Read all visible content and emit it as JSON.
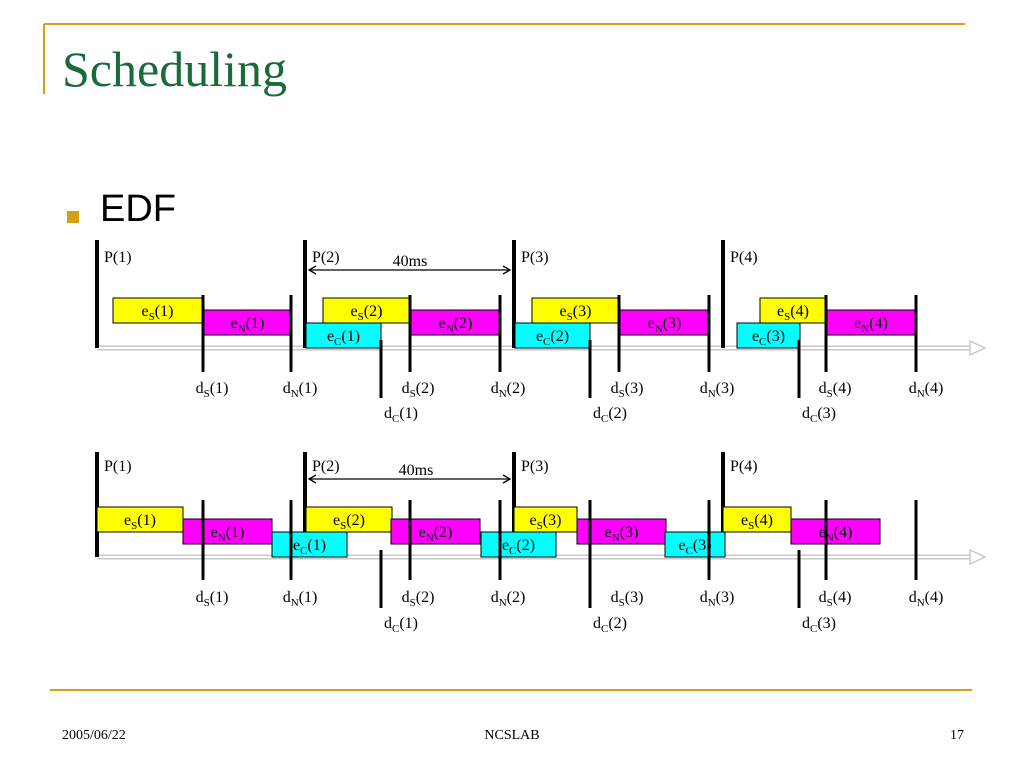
{
  "slide": {
    "title": "Scheduling",
    "bullet": "EDF",
    "footer": {
      "date": "2005/06/22",
      "center": "NCSLAB",
      "page": "17"
    }
  },
  "colors": {
    "title": "#1a6b3c",
    "accent_line": "#d4a017",
    "bullet": "#d4a017",
    "es": "#ffff00",
    "en": "#ff00ff",
    "ec": "#00ffff",
    "axis": "#c8c8c8"
  },
  "diagrams": [
    {
      "period_labels": [
        "P(1)",
        "P(2)",
        "P(3)",
        "P(4)"
      ],
      "interval_label": "40ms",
      "exec_boxes": [
        {
          "base": "e",
          "sub": "S",
          "idx": "(1)",
          "kind": "es"
        },
        {
          "base": "e",
          "sub": "N",
          "idx": "(1)",
          "kind": "en"
        },
        {
          "base": "e",
          "sub": "S",
          "idx": "(2)",
          "kind": "es"
        },
        {
          "base": "e",
          "sub": "C",
          "idx": "(1)",
          "kind": "ec"
        },
        {
          "base": "e",
          "sub": "N",
          "idx": "(2)",
          "kind": "en"
        },
        {
          "base": "e",
          "sub": "S",
          "idx": "(3)",
          "kind": "es"
        },
        {
          "base": "e",
          "sub": "C",
          "idx": "(2)",
          "kind": "ec"
        },
        {
          "base": "e",
          "sub": "N",
          "idx": "(3)",
          "kind": "en"
        },
        {
          "base": "e",
          "sub": "S",
          "idx": "(4)",
          "kind": "es"
        },
        {
          "base": "e",
          "sub": "C",
          "idx": "(3)",
          "kind": "ec"
        },
        {
          "base": "e",
          "sub": "N",
          "idx": "(4)",
          "kind": "en"
        }
      ],
      "deadline_labels": [
        {
          "base": "d",
          "sub": "S",
          "idx": "(1)"
        },
        {
          "base": "d",
          "sub": "N",
          "idx": "(1)"
        },
        {
          "base": "d",
          "sub": "S",
          "idx": "(2)"
        },
        {
          "base": "d",
          "sub": "N",
          "idx": "(2)"
        },
        {
          "base": "d",
          "sub": "S",
          "idx": "(3)"
        },
        {
          "base": "d",
          "sub": "N",
          "idx": "(3)"
        },
        {
          "base": "d",
          "sub": "S",
          "idx": "(4)"
        },
        {
          "base": "d",
          "sub": "N",
          "idx": "(4)"
        },
        {
          "base": "d",
          "sub": "C",
          "idx": "(1)"
        },
        {
          "base": "d",
          "sub": "C",
          "idx": "(2)"
        },
        {
          "base": "d",
          "sub": "C",
          "idx": "(3)"
        }
      ]
    },
    {
      "period_labels": [
        "P(1)",
        "P(2)",
        "P(3)",
        "P(4)"
      ],
      "interval_label": "40ms",
      "exec_boxes": [
        {
          "base": "e",
          "sub": "S",
          "idx": "(1)",
          "kind": "es"
        },
        {
          "base": "e",
          "sub": "N",
          "idx": "(1)",
          "kind": "en"
        },
        {
          "base": "e",
          "sub": "C",
          "idx": "(1)",
          "kind": "ec"
        },
        {
          "base": "e",
          "sub": "S",
          "idx": "(2)",
          "kind": "es"
        },
        {
          "base": "e",
          "sub": "N",
          "idx": "(2)",
          "kind": "en"
        },
        {
          "base": "e",
          "sub": "C",
          "idx": "(2)",
          "kind": "ec"
        },
        {
          "base": "e",
          "sub": "S",
          "idx": "(3)",
          "kind": "es"
        },
        {
          "base": "e",
          "sub": "N",
          "idx": "(3)",
          "kind": "en"
        },
        {
          "base": "e",
          "sub": "C",
          "idx": "(3)",
          "kind": "ec"
        },
        {
          "base": "e",
          "sub": "S",
          "idx": "(4)",
          "kind": "es"
        },
        {
          "base": "e",
          "sub": "N",
          "idx": "(4)",
          "kind": "en"
        }
      ],
      "deadline_labels": [
        {
          "base": "d",
          "sub": "S",
          "idx": "(1)"
        },
        {
          "base": "d",
          "sub": "N",
          "idx": "(1)"
        },
        {
          "base": "d",
          "sub": "S",
          "idx": "(2)"
        },
        {
          "base": "d",
          "sub": "N",
          "idx": "(2)"
        },
        {
          "base": "d",
          "sub": "S",
          "idx": "(3)"
        },
        {
          "base": "d",
          "sub": "N",
          "idx": "(3)"
        },
        {
          "base": "d",
          "sub": "S",
          "idx": "(4)"
        },
        {
          "base": "d",
          "sub": "N",
          "idx": "(4)"
        },
        {
          "base": "d",
          "sub": "C",
          "idx": "(1)"
        },
        {
          "base": "d",
          "sub": "C",
          "idx": "(2)"
        },
        {
          "base": "d",
          "sub": "C",
          "idx": "(3)"
        }
      ]
    }
  ]
}
